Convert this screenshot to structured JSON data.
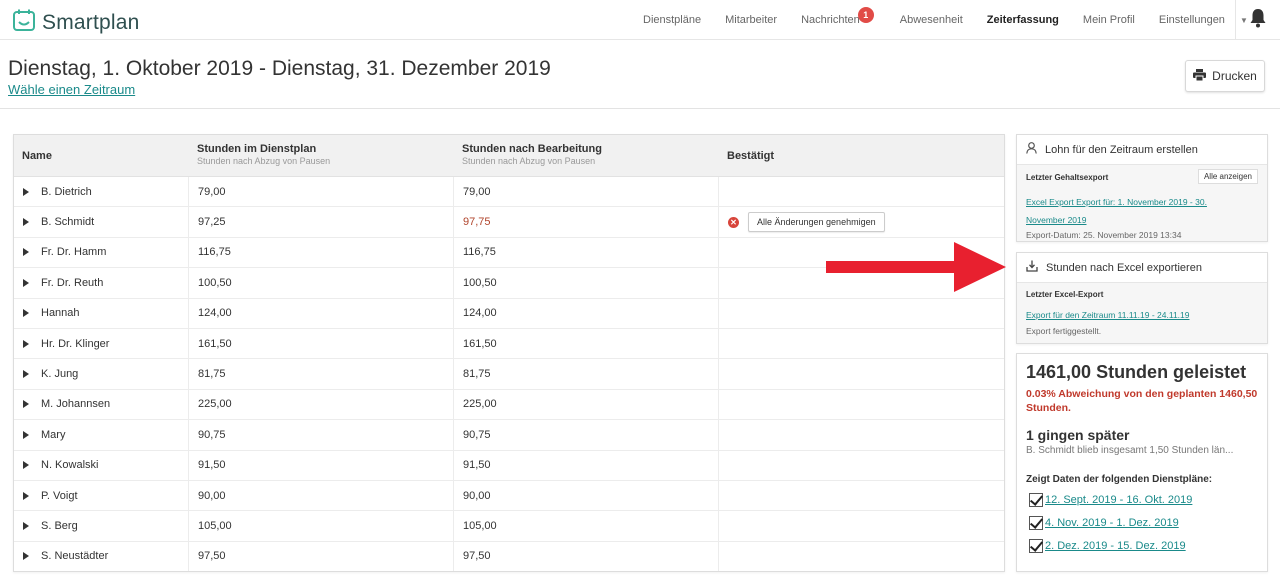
{
  "app": {
    "name": "Smartplan"
  },
  "nav": {
    "items": [
      {
        "label": "Dienstpläne"
      },
      {
        "label": "Mitarbeiter"
      },
      {
        "label": "Nachrichten",
        "badge": "1"
      },
      {
        "label": "Abwesenheit"
      },
      {
        "label": "Zeiterfassung",
        "active": true
      },
      {
        "label": "Mein Profil"
      },
      {
        "label": "Einstellungen"
      }
    ]
  },
  "header": {
    "title": "Dienstag, 1. Oktober 2019 - Dienstag, 31. Dezember 2019",
    "period_link": "Wähle einen Zeitraum",
    "print_label": "Drucken"
  },
  "table": {
    "columns": [
      {
        "title": "Name",
        "subtitle": ""
      },
      {
        "title": "Stunden im Dienstplan",
        "subtitle": "Stunden nach Abzug von Pausen"
      },
      {
        "title": "Stunden nach Bearbeitung",
        "subtitle": "Stunden nach Abzug von Pausen"
      },
      {
        "title": "Bestätigt",
        "subtitle": ""
      }
    ],
    "rows": [
      {
        "name": "B. Dietrich",
        "planned": "79,00",
        "edited": "79,00"
      },
      {
        "name": "B. Schmidt",
        "planned": "97,25",
        "edited": "97,75",
        "changed": true,
        "action": "Alle Änderungen genehmigen"
      },
      {
        "name": "Fr. Dr. Hamm",
        "planned": "116,75",
        "edited": "116,75"
      },
      {
        "name": "Fr. Dr. Reuth",
        "planned": "100,50",
        "edited": "100,50"
      },
      {
        "name": "Hannah",
        "planned": "124,00",
        "edited": "124,00"
      },
      {
        "name": "Hr. Dr. Klinger",
        "planned": "161,50",
        "edited": "161,50"
      },
      {
        "name": "K. Jung",
        "planned": "81,75",
        "edited": "81,75"
      },
      {
        "name": "M. Johannsen",
        "planned": "225,00",
        "edited": "225,00"
      },
      {
        "name": "Mary",
        "planned": "90,75",
        "edited": "90,75"
      },
      {
        "name": "N. Kowalski",
        "planned": "91,50",
        "edited": "91,50"
      },
      {
        "name": "P. Voigt",
        "planned": "90,00",
        "edited": "90,00"
      },
      {
        "name": "S. Berg",
        "planned": "105,00",
        "edited": "105,00"
      },
      {
        "name": "S. Neustädter",
        "planned": "97,50",
        "edited": "97,50"
      }
    ]
  },
  "payroll": {
    "title": "Lohn für den Zeitraum erstellen",
    "sub_label": "Letzter Gehaltsexport",
    "show_all": "Alle anzeigen",
    "link": "Excel Export Export für: 1. November 2019 - 30. November 2019",
    "date": "Export-Datum: 25. November 2019 13:34"
  },
  "excel": {
    "title": "Stunden nach Excel exportieren",
    "sub_label": "Letzter Excel-Export",
    "link": "Export für den Zeitraum 11.11.19 - 24.11.19",
    "status": "Export fertiggestellt."
  },
  "stats": {
    "total": "1461,00 Stunden geleistet",
    "deviation": "0.03% Abweichung von den geplanten 1460,50 Stunden.",
    "late_title": "1 gingen später",
    "late_desc": "B. Schmidt blieb insgesamt 1,50 Stunden län...",
    "plans_title": "Zeigt Daten der folgenden Dienstpläne:",
    "plans": [
      {
        "label": "12. Sept. 2019 - 16. Okt. 2019"
      },
      {
        "label": "4. Nov. 2019 - 1. Dez. 2019"
      },
      {
        "label": "2. Dez. 2019 - 15. Dez. 2019"
      }
    ]
  },
  "colors": {
    "accent": "#1a8a8a",
    "warning": "#c0392b",
    "arrow": "#e8202f"
  }
}
